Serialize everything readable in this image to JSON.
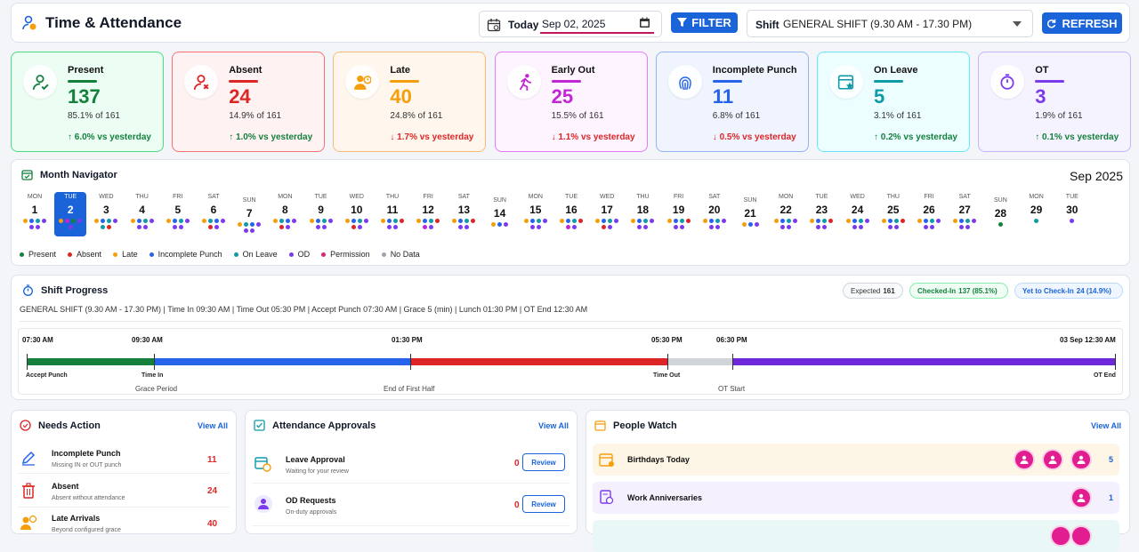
{
  "header": {
    "title": "Time & Attendance",
    "today_label": "Today",
    "date_value": "Sep 02, 2025",
    "filter_label": "FILTER",
    "shift_label": "Shift",
    "shift_value": "GENERAL SHIFT (9.30 AM - 17.30 PM)",
    "refresh_label": "REFRESH"
  },
  "stats": [
    {
      "label": "Present",
      "value": "137",
      "pct": "85.1% of 161",
      "trend": "↑ 6.0% vs yesterday",
      "color": "#15803d",
      "trend_color": "#15803d",
      "bg": "#ecfdf3",
      "border": "#4ade80",
      "icon": "user-check-icon"
    },
    {
      "label": "Absent",
      "value": "24",
      "pct": "14.9% of 161",
      "trend": "↑ 1.0% vs yesterday",
      "color": "#dc2626",
      "trend_color": "#15803d",
      "bg": "#fef2f2",
      "border": "#f87171",
      "icon": "user-x-icon"
    },
    {
      "label": "Late",
      "value": "40",
      "pct": "24.8% of 161",
      "trend": "↓ 1.7% vs yesterday",
      "color": "#f59e0b",
      "trend_color": "#dc2626",
      "bg": "#fff7ed",
      "border": "#fdba74",
      "icon": "user-clock-icon"
    },
    {
      "label": "Early Out",
      "value": "25",
      "pct": "15.5% of 161",
      "trend": "↓ 1.1% vs yesterday",
      "color": "#c026d3",
      "trend_color": "#dc2626",
      "bg": "#fdf4ff",
      "border": "#e879f9",
      "icon": "running-icon"
    },
    {
      "label": "Incomplete Punch",
      "value": "11",
      "pct": "6.8% of 161",
      "trend": "↓ 0.5% vs yesterday",
      "color": "#2563eb",
      "trend_color": "#dc2626",
      "bg": "#eff4ff",
      "border": "#93b4f5",
      "icon": "fingerprint-icon"
    },
    {
      "label": "On Leave",
      "value": "5",
      "pct": "3.1% of 161",
      "trend": "↑ 0.2% vs yesterday",
      "color": "#0e9aa7",
      "trend_color": "#15803d",
      "bg": "#ecfeff",
      "border": "#67e8f9",
      "icon": "calendar-star-icon"
    },
    {
      "label": "OT",
      "value": "3",
      "pct": "1.9% of 161",
      "trend": "↑ 0.1% vs yesterday",
      "color": "#7c3aed",
      "trend_color": "#15803d",
      "bg": "#f5f3ff",
      "border": "#c4b5fd",
      "icon": "stopwatch-icon"
    }
  ],
  "month_nav": {
    "title": "Month Navigator",
    "month": "Sep 2025",
    "selected_day": 2,
    "days": [
      {
        "dow": "MON",
        "d": "1",
        "dots": [
          "#f59e0b",
          "#2563eb",
          "#0e9aa7",
          "#7c3aed",
          "#7c3aed",
          "#7c3aed"
        ]
      },
      {
        "dow": "TUE",
        "d": "2",
        "dots": [
          "#f59e0b",
          "#c026d3",
          "#15803d",
          "#7c3aed",
          "#7c3aed"
        ]
      },
      {
        "dow": "WED",
        "d": "3",
        "dots": [
          "#f59e0b",
          "#2563eb",
          "#0e9aa7",
          "#7c3aed",
          "#0e9aa7",
          "#dc2626"
        ]
      },
      {
        "dow": "THU",
        "d": "4",
        "dots": [
          "#f59e0b",
          "#2563eb",
          "#0e9aa7",
          "#7c3aed",
          "#7c3aed",
          "#7c3aed"
        ]
      },
      {
        "dow": "FRI",
        "d": "5",
        "dots": [
          "#f59e0b",
          "#2563eb",
          "#0e9aa7",
          "#7c3aed",
          "#7c3aed",
          "#7c3aed"
        ]
      },
      {
        "dow": "SAT",
        "d": "6",
        "dots": [
          "#f59e0b",
          "#0e9aa7",
          "#2563eb",
          "#7c3aed",
          "#dc2626",
          "#7c3aed"
        ]
      },
      {
        "dow": "SUN",
        "d": "7",
        "dots": [
          "#f59e0b",
          "#0e9aa7",
          "#2563eb",
          "#7c3aed",
          "#7c3aed",
          "#7c3aed"
        ]
      },
      {
        "dow": "MON",
        "d": "8",
        "dots": [
          "#f59e0b",
          "#0e9aa7",
          "#2563eb",
          "#7c3aed",
          "#dc2626",
          "#7c3aed"
        ]
      },
      {
        "dow": "TUE",
        "d": "9",
        "dots": [
          "#f59e0b",
          "#2563eb",
          "#0e9aa7",
          "#7c3aed",
          "#7c3aed",
          "#7c3aed"
        ]
      },
      {
        "dow": "WED",
        "d": "10",
        "dots": [
          "#f59e0b",
          "#2563eb",
          "#0e9aa7",
          "#7c3aed",
          "#dc2626",
          "#7c3aed"
        ]
      },
      {
        "dow": "THU",
        "d": "11",
        "dots": [
          "#f59e0b",
          "#2563eb",
          "#0e9aa7",
          "#dc2626",
          "#7c3aed",
          "#7c3aed"
        ]
      },
      {
        "dow": "FRI",
        "d": "12",
        "dots": [
          "#f59e0b",
          "#2563eb",
          "#0e9aa7",
          "#dc2626",
          "#c026d3",
          "#7c3aed"
        ]
      },
      {
        "dow": "SAT",
        "d": "13",
        "dots": [
          "#f59e0b",
          "#2563eb",
          "#0e9aa7",
          "#dc2626",
          "#7c3aed",
          "#7c3aed"
        ]
      },
      {
        "dow": "SUN",
        "d": "14",
        "dots": [
          "#f59e0b",
          "#2563eb",
          "#7c3aed"
        ]
      },
      {
        "dow": "MON",
        "d": "15",
        "dots": [
          "#f59e0b",
          "#2563eb",
          "#0e9aa7",
          "#7c3aed",
          "#7c3aed",
          "#7c3aed"
        ]
      },
      {
        "dow": "TUE",
        "d": "16",
        "dots": [
          "#f59e0b",
          "#2563eb",
          "#0e9aa7",
          "#dc2626",
          "#c026d3",
          "#7c3aed"
        ]
      },
      {
        "dow": "WED",
        "d": "17",
        "dots": [
          "#f59e0b",
          "#2563eb",
          "#0e9aa7",
          "#7c3aed",
          "#dc2626",
          "#7c3aed"
        ]
      },
      {
        "dow": "THU",
        "d": "18",
        "dots": [
          "#f59e0b",
          "#2563eb",
          "#0e9aa7",
          "#7c3aed",
          "#7c3aed",
          "#7c3aed"
        ]
      },
      {
        "dow": "FRI",
        "d": "19",
        "dots": [
          "#f59e0b",
          "#2563eb",
          "#0e9aa7",
          "#dc2626",
          "#7c3aed",
          "#7c3aed"
        ]
      },
      {
        "dow": "SAT",
        "d": "20",
        "dots": [
          "#f59e0b",
          "#2563eb",
          "#0e9aa7",
          "#7c3aed",
          "#7c3aed",
          "#7c3aed"
        ]
      },
      {
        "dow": "SUN",
        "d": "21",
        "dots": [
          "#f59e0b",
          "#2563eb",
          "#7c3aed"
        ]
      },
      {
        "dow": "MON",
        "d": "22",
        "dots": [
          "#f59e0b",
          "#2563eb",
          "#0e9aa7",
          "#7c3aed",
          "#7c3aed",
          "#7c3aed"
        ]
      },
      {
        "dow": "TUE",
        "d": "23",
        "dots": [
          "#f59e0b",
          "#2563eb",
          "#0e9aa7",
          "#dc2626",
          "#7c3aed",
          "#7c3aed"
        ]
      },
      {
        "dow": "WED",
        "d": "24",
        "dots": [
          "#f59e0b",
          "#2563eb",
          "#0e9aa7",
          "#7c3aed",
          "#7c3aed",
          "#7c3aed"
        ]
      },
      {
        "dow": "THU",
        "d": "25",
        "dots": [
          "#f59e0b",
          "#2563eb",
          "#0e9aa7",
          "#dc2626",
          "#7c3aed",
          "#7c3aed"
        ]
      },
      {
        "dow": "FRI",
        "d": "26",
        "dots": [
          "#f59e0b",
          "#2563eb",
          "#0e9aa7",
          "#7c3aed",
          "#7c3aed",
          "#7c3aed"
        ]
      },
      {
        "dow": "SAT",
        "d": "27",
        "dots": [
          "#f59e0b",
          "#2563eb",
          "#0e9aa7",
          "#7c3aed",
          "#7c3aed",
          "#7c3aed"
        ]
      },
      {
        "dow": "SUN",
        "d": "28",
        "dots": [
          "#15803d"
        ]
      },
      {
        "dow": "MON",
        "d": "29",
        "dots": [
          "#0e9aa7"
        ]
      },
      {
        "dow": "TUE",
        "d": "30",
        "dots": [
          "#7c3aed"
        ]
      }
    ],
    "legend": [
      {
        "label": "Present",
        "color": "#15803d"
      },
      {
        "label": "Absent",
        "color": "#dc2626"
      },
      {
        "label": "Late",
        "color": "#f59e0b"
      },
      {
        "label": "Incomplete Punch",
        "color": "#2563eb"
      },
      {
        "label": "On Leave",
        "color": "#0e9aa7"
      },
      {
        "label": "OD",
        "color": "#7c3aed"
      },
      {
        "label": "Permission",
        "color": "#db2777"
      },
      {
        "label": "No Data",
        "color": "#9ca3af"
      }
    ]
  },
  "shift_progress": {
    "title": "Shift Progress",
    "expected_label": "Expected",
    "expected_value": "161",
    "checked_in_label": "Checked-In",
    "checked_in_value": "137 (85.1%)",
    "yet_label": "Yet to Check-In",
    "yet_value": "24 (14.9%)",
    "description": "GENERAL SHIFT (9.30 AM - 17.30 PM) | Time In 09:30 AM | Time Out 05:30 PM | Accept Punch 07:30 AM | Grace 5 (min) | Lunch 01:30 PM | OT End 12:30 AM",
    "times": [
      "07:30 AM",
      "09:30 AM",
      "01:30 PM",
      "05:30 PM",
      "06:30 PM",
      "03 Sep 12:30 AM"
    ],
    "labels": [
      "Accept Punch",
      "Time In",
      "Time Out",
      "OT End"
    ],
    "sublabels": [
      "Grace Period",
      "End of First Half",
      "OT Start"
    ],
    "segment_colors": [
      "#15803d",
      "#2563eb",
      "#dc2626",
      "#d1d5db",
      "#6d28d9"
    ]
  },
  "needs_action": {
    "title": "Needs Action",
    "view_all": "View All",
    "items": [
      {
        "title": "Incomplete Punch",
        "sub": "Missing IN or OUT punch",
        "value": "11"
      },
      {
        "title": "Absent",
        "sub": "Absent without attendance",
        "value": "24"
      },
      {
        "title": "Late Arrivals",
        "sub": "Beyond configured grace",
        "value": "40"
      }
    ]
  },
  "approvals": {
    "title": "Attendance Approvals",
    "view_all": "View All",
    "items": [
      {
        "title": "Leave Approval",
        "sub": "Waiting for your review",
        "value": "0",
        "button": "Review"
      },
      {
        "title": "OD Requests",
        "sub": "On-duty approvals",
        "value": "0",
        "button": "Review"
      }
    ]
  },
  "people_watch": {
    "title": "People Watch",
    "view_all": "View All",
    "items": [
      {
        "title": "Birthdays Today",
        "count": "5"
      },
      {
        "title": "Work Anniversaries",
        "count": "1"
      }
    ]
  }
}
